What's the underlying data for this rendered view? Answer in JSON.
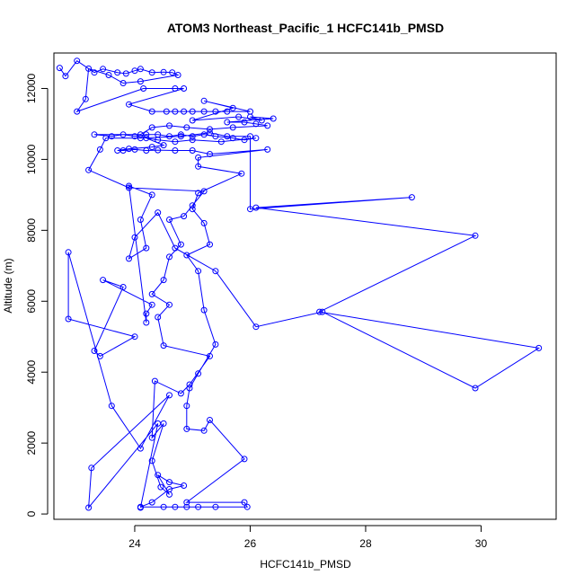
{
  "chart_data": {
    "type": "scatter",
    "title": "ATOM3 Northeast_Pacific_1 HCFC141b_PMSD",
    "xlabel": "HCFC141b_PMSD",
    "ylabel": "Altitude (m)",
    "xlim": [
      22.6,
      31.3
    ],
    "ylim": [
      -150,
      13000
    ],
    "xticks": [
      24,
      26,
      28,
      30
    ],
    "yticks": [
      0,
      2000,
      4000,
      6000,
      8000,
      10000,
      12000
    ],
    "grid": false,
    "series": [
      {
        "color": "#0000ff",
        "marker": "open-circle",
        "line": true,
        "points": [
          [
            22.7,
            12580
          ],
          [
            22.8,
            12350
          ],
          [
            23.0,
            12780
          ],
          [
            23.3,
            12450
          ],
          [
            23.45,
            12550
          ],
          [
            23.7,
            12450
          ],
          [
            23.85,
            12420
          ],
          [
            24.0,
            12500
          ],
          [
            24.1,
            12550
          ],
          [
            24.3,
            12450
          ],
          [
            24.5,
            12460
          ],
          [
            24.65,
            12450
          ],
          [
            24.75,
            12380
          ],
          [
            24.1,
            12200
          ],
          [
            23.8,
            12150
          ],
          [
            23.55,
            12380
          ],
          [
            23.2,
            12560
          ],
          [
            23.15,
            11700
          ],
          [
            23.0,
            11350
          ],
          [
            24.15,
            12000
          ],
          [
            24.7,
            12000
          ],
          [
            24.85,
            12000
          ],
          [
            23.9,
            11550
          ],
          [
            24.3,
            11350
          ],
          [
            24.55,
            11350
          ],
          [
            24.7,
            11350
          ],
          [
            24.85,
            11350
          ],
          [
            25.0,
            11350
          ],
          [
            25.2,
            11350
          ],
          [
            25.4,
            11350
          ],
          [
            25.6,
            11350
          ],
          [
            26.0,
            11350
          ],
          [
            25.2,
            11650
          ],
          [
            25.7,
            11450
          ],
          [
            25.0,
            11100
          ],
          [
            25.8,
            11200
          ],
          [
            26.2,
            11100
          ],
          [
            26.0,
            11200
          ],
          [
            26.4,
            11150
          ],
          [
            25.6,
            11050
          ],
          [
            25.9,
            11050
          ],
          [
            26.1,
            11000
          ],
          [
            26.3,
            10950
          ],
          [
            25.7,
            10900
          ],
          [
            25.3,
            10850
          ],
          [
            24.9,
            10900
          ],
          [
            24.6,
            10950
          ],
          [
            24.3,
            10900
          ],
          [
            24.1,
            10700
          ],
          [
            23.3,
            10700
          ],
          [
            23.6,
            10650
          ],
          [
            23.8,
            10700
          ],
          [
            24.0,
            10650
          ],
          [
            24.2,
            10700
          ],
          [
            24.4,
            10700
          ],
          [
            24.6,
            10650
          ],
          [
            24.8,
            10700
          ],
          [
            25.0,
            10650
          ],
          [
            25.2,
            10700
          ],
          [
            25.4,
            10650
          ],
          [
            25.7,
            10600
          ],
          [
            25.9,
            10550
          ],
          [
            26.1,
            10600
          ],
          [
            25.5,
            10500
          ],
          [
            25.0,
            10550
          ],
          [
            24.7,
            10500
          ],
          [
            24.4,
            10550
          ],
          [
            24.2,
            10600
          ],
          [
            24.5,
            10400
          ],
          [
            24.3,
            10350
          ],
          [
            23.9,
            10300
          ],
          [
            23.7,
            10250
          ],
          [
            23.8,
            10250
          ],
          [
            24.0,
            10280
          ],
          [
            24.2,
            10250
          ],
          [
            24.4,
            10260
          ],
          [
            24.7,
            10250
          ],
          [
            25.0,
            10250
          ],
          [
            25.3,
            10150
          ],
          [
            26.3,
            10280
          ],
          [
            25.1,
            10050
          ],
          [
            25.1,
            9800
          ],
          [
            25.85,
            9600
          ],
          [
            25.1,
            9050
          ],
          [
            25.0,
            8600
          ],
          [
            25.2,
            8200
          ],
          [
            25.3,
            7600
          ],
          [
            24.9,
            7300
          ],
          [
            25.1,
            6850
          ],
          [
            25.2,
            5750
          ],
          [
            25.4,
            4780
          ],
          [
            25.1,
            3960
          ],
          [
            24.95,
            3550
          ],
          [
            24.9,
            3050
          ],
          [
            24.9,
            2400
          ],
          [
            25.2,
            2350
          ],
          [
            25.3,
            2650
          ],
          [
            25.9,
            1550
          ],
          [
            24.9,
            330
          ],
          [
            25.9,
            330
          ],
          [
            25.95,
            200
          ],
          [
            25.4,
            200
          ],
          [
            25.1,
            200
          ],
          [
            24.9,
            200
          ],
          [
            24.7,
            200
          ],
          [
            24.5,
            200
          ],
          [
            24.1,
            200
          ],
          [
            24.3,
            330
          ],
          [
            24.6,
            700
          ],
          [
            24.85,
            800
          ],
          [
            24.6,
            900
          ],
          [
            24.4,
            1100
          ],
          [
            24.6,
            550
          ],
          [
            24.45,
            760
          ],
          [
            24.3,
            1500
          ],
          [
            24.5,
            2550
          ],
          [
            24.3,
            2150
          ],
          [
            24.35,
            3750
          ],
          [
            24.8,
            3400
          ],
          [
            24.95,
            3650
          ],
          [
            25.3,
            4450
          ],
          [
            24.5,
            4750
          ],
          [
            24.4,
            5550
          ],
          [
            24.6,
            5900
          ],
          [
            24.3,
            6200
          ],
          [
            24.5,
            6600
          ],
          [
            24.6,
            7250
          ],
          [
            24.8,
            7600
          ],
          [
            24.6,
            8300
          ],
          [
            24.85,
            8400
          ],
          [
            25.0,
            8700
          ],
          [
            25.2,
            9100
          ],
          [
            23.9,
            9200
          ],
          [
            23.2,
            9700
          ],
          [
            23.4,
            10280
          ],
          [
            23.5,
            10600
          ],
          [
            24.1,
            10600
          ],
          [
            24.8,
            10650
          ],
          [
            25.3,
            10750
          ],
          [
            25.6,
            10650
          ],
          [
            26.0,
            10650
          ],
          [
            26.0,
            8600
          ],
          [
            28.8,
            8930
          ],
          [
            26.1,
            8640
          ],
          [
            29.9,
            7850
          ],
          [
            27.2,
            5700
          ],
          [
            31.0,
            4680
          ],
          [
            29.9,
            3550
          ],
          [
            27.25,
            5700
          ],
          [
            26.1,
            5280
          ],
          [
            25.4,
            6850
          ],
          [
            24.7,
            7500
          ],
          [
            24.4,
            8500
          ],
          [
            24.0,
            7800
          ],
          [
            23.9,
            7200
          ],
          [
            24.2,
            7500
          ],
          [
            24.1,
            8300
          ],
          [
            24.3,
            9000
          ],
          [
            23.9,
            9250
          ],
          [
            24.2,
            5400
          ],
          [
            24.2,
            5650
          ],
          [
            24.3,
            5900
          ],
          [
            23.45,
            6600
          ],
          [
            23.8,
            6400
          ],
          [
            23.3,
            4600
          ],
          [
            23.4,
            4450
          ],
          [
            24.0,
            5000
          ],
          [
            22.85,
            5500
          ],
          [
            22.85,
            7380
          ],
          [
            23.6,
            3050
          ],
          [
            24.1,
            1850
          ],
          [
            24.6,
            3350
          ],
          [
            23.25,
            1300
          ],
          [
            23.2,
            180
          ],
          [
            24.4,
            2550
          ],
          [
            24.1,
            180
          ]
        ]
      }
    ]
  }
}
